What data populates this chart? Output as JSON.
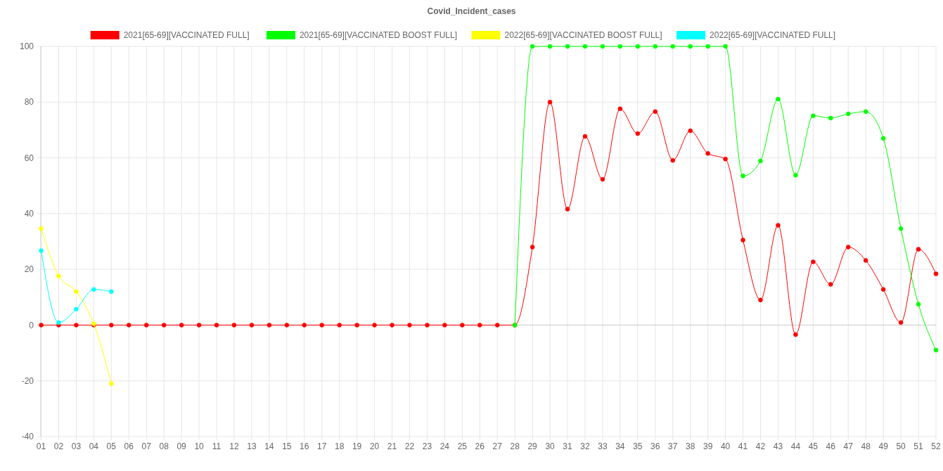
{
  "chart_data": {
    "type": "line",
    "title": "Covid_Incident_cases",
    "categories": [
      "01",
      "02",
      "03",
      "04",
      "05",
      "06",
      "07",
      "08",
      "09",
      "10",
      "11",
      "12",
      "13",
      "14",
      "15",
      "16",
      "17",
      "18",
      "19",
      "20",
      "21",
      "22",
      "23",
      "24",
      "25",
      "26",
      "27",
      "28",
      "29",
      "30",
      "31",
      "32",
      "33",
      "34",
      "35",
      "36",
      "37",
      "38",
      "39",
      "40",
      "41",
      "42",
      "43",
      "44",
      "45",
      "46",
      "47",
      "48",
      "49",
      "50",
      "51",
      "52"
    ],
    "series": [
      {
        "name": "2021[65-69][VACCINATED FULL]",
        "color": "#ff0000",
        "values": [
          0,
          0,
          0,
          0,
          0,
          0,
          0,
          0,
          0,
          0,
          0,
          0,
          0,
          0,
          0,
          0,
          0,
          0,
          0,
          0,
          0,
          0,
          0,
          0,
          0,
          0,
          0,
          0,
          28,
          80,
          41.6,
          67.7,
          52.3,
          77.6,
          68.7,
          76.6,
          59.1,
          69.7,
          61.6,
          59.6,
          30.5,
          9,
          35.8,
          -3.4,
          22.7,
          14.6,
          28,
          23.2,
          12.8,
          0.9,
          27.2,
          18.4
        ]
      },
      {
        "name": "2021[65-69][VACCINATED BOOST FULL]",
        "color": "#00ff00",
        "values": [
          null,
          null,
          null,
          null,
          null,
          null,
          null,
          null,
          null,
          null,
          null,
          null,
          null,
          null,
          null,
          null,
          null,
          null,
          null,
          null,
          null,
          null,
          null,
          null,
          null,
          null,
          null,
          0,
          100,
          100,
          100,
          100,
          100,
          100,
          100,
          100,
          100,
          100,
          100,
          100,
          53.5,
          58.9,
          81.1,
          53.8,
          75.1,
          74.3,
          75.8,
          76.6,
          67,
          34.6,
          7.5,
          -9
        ]
      },
      {
        "name": "2022[65-69][VACCINATED BOOST FULL]",
        "color": "#ffff00",
        "values": [
          34.6,
          17.6,
          12,
          0.5,
          -21,
          null,
          null,
          null,
          null,
          null,
          null,
          null,
          null,
          null,
          null,
          null,
          null,
          null,
          null,
          null,
          null,
          null,
          null,
          null,
          null,
          null,
          null,
          null,
          null,
          null,
          null,
          null,
          null,
          null,
          null,
          null,
          null,
          null,
          null,
          null,
          null,
          null,
          null,
          null,
          null,
          null,
          null,
          null,
          null,
          null,
          null,
          null
        ]
      },
      {
        "name": "2022[65-69][VACCINATED FULL]",
        "color": "#00ffff",
        "values": [
          26.7,
          0.9,
          5.7,
          12.8,
          12,
          null,
          null,
          null,
          null,
          null,
          null,
          null,
          null,
          null,
          null,
          null,
          null,
          null,
          null,
          null,
          null,
          null,
          null,
          null,
          null,
          null,
          null,
          null,
          null,
          null,
          null,
          null,
          null,
          null,
          null,
          null,
          null,
          null,
          null,
          null,
          null,
          null,
          null,
          null,
          null,
          null,
          null,
          null,
          null,
          null,
          null,
          null
        ]
      }
    ],
    "ylim": [
      -40,
      100
    ],
    "yticks": [
      -40,
      -20,
      0,
      20,
      40,
      60,
      80,
      100
    ],
    "grid": true,
    "legend": "top",
    "marker": "circle"
  }
}
